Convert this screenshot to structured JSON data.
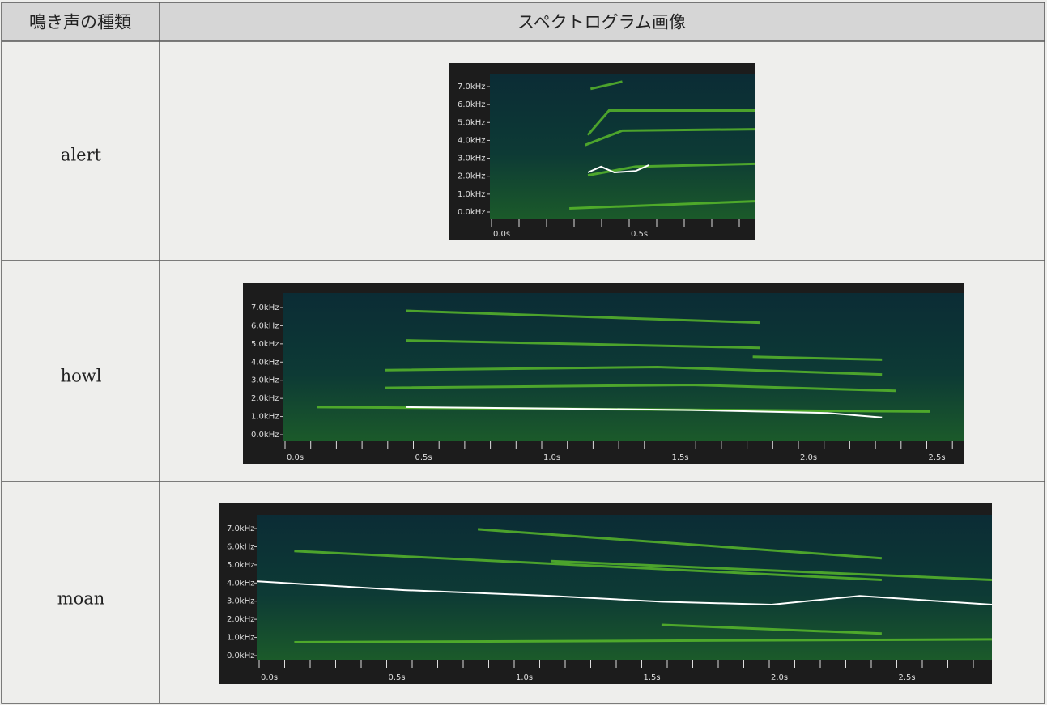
{
  "table": {
    "header": [
      "鳴き声の種類",
      "スペクトログラム画像"
    ],
    "rows": [
      {
        "call": "alert",
        "spectrogram": {
          "y_labels": [
            "7.0kHz",
            "6.0kHz",
            "5.0kHz",
            "4.0kHz",
            "3.0kHz",
            "2.0kHz",
            "1.0kHz",
            "0.0kHz"
          ],
          "x_labels": [
            "0.0s",
            "0.5s"
          ]
        }
      },
      {
        "call": "howl",
        "spectrogram": {
          "y_labels": [
            "7.0kHz",
            "6.0kHz",
            "5.0kHz",
            "4.0kHz",
            "3.0kHz",
            "2.0kHz",
            "1.0kHz",
            "0.0kHz"
          ],
          "x_labels": [
            "0.0s",
            "0.5s",
            "1.0s",
            "1.5s",
            "2.0s",
            "2.5s"
          ]
        }
      },
      {
        "call": "moan",
        "spectrogram": {
          "y_labels": [
            "7.0kHz",
            "6.0kHz",
            "5.0kHz",
            "4.0kHz",
            "3.0kHz",
            "2.0kHz",
            "1.0kHz",
            "0.0kHz"
          ],
          "x_labels": [
            "0.0s",
            "0.5s",
            "1.0s",
            "1.5s",
            "2.0s",
            "2.5s"
          ]
        }
      }
    ]
  }
}
